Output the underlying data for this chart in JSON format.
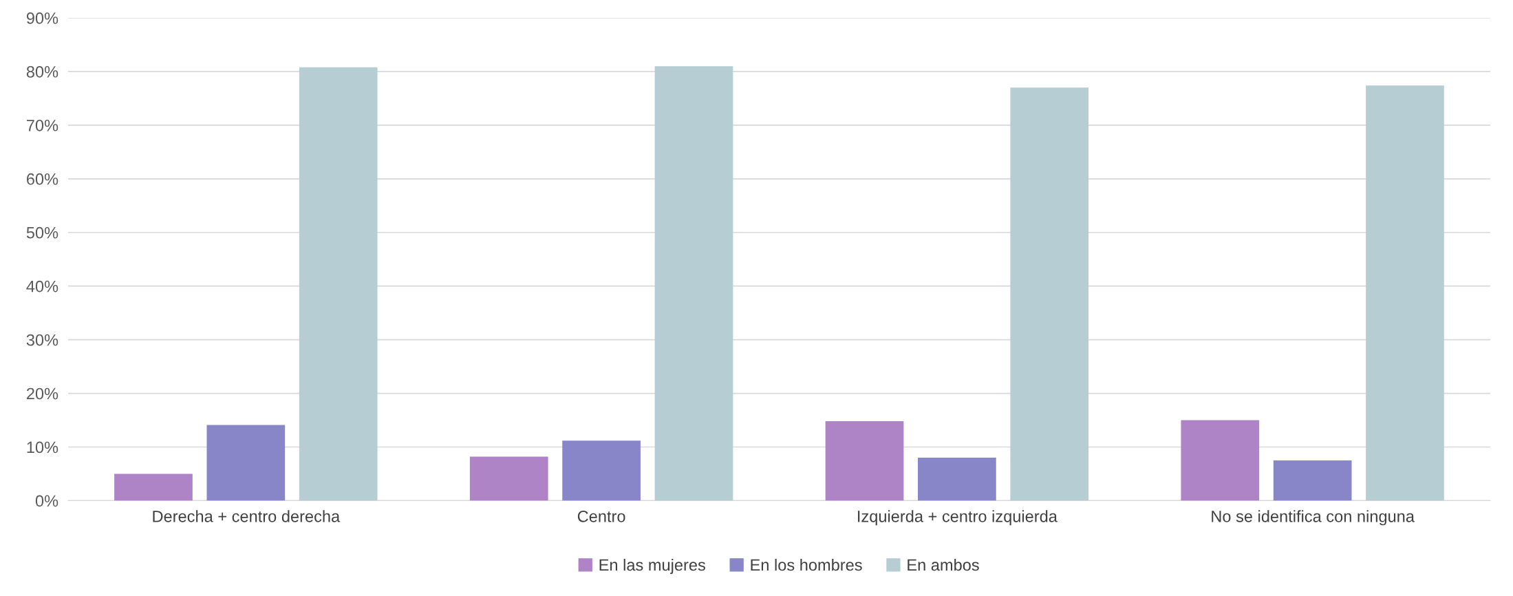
{
  "chart_data": {
    "type": "bar",
    "categories": [
      "Derecha + centro derecha",
      "Centro",
      "Izquierda + centro izquierda",
      "No se identifica con ninguna"
    ],
    "series": [
      {
        "name": "En las mujeres",
        "color": "#ae84c6",
        "values": [
          5.0,
          8.2,
          14.8,
          15.0
        ]
      },
      {
        "name": "En los hombres",
        "color": "#8886c8",
        "values": [
          14.1,
          11.2,
          8.0,
          7.5
        ]
      },
      {
        "name": "En ambos",
        "color": "#b6cdd3",
        "values": [
          80.8,
          81.0,
          77.0,
          77.4
        ]
      }
    ],
    "ylim": [
      0,
      90
    ],
    "yticks": [
      {
        "value": 0,
        "label": "0%"
      },
      {
        "value": 10,
        "label": "10%"
      },
      {
        "value": 20,
        "label": "20%"
      },
      {
        "value": 30,
        "label": "30%"
      },
      {
        "value": 40,
        "label": "40%"
      },
      {
        "value": 50,
        "label": "50%"
      },
      {
        "value": 60,
        "label": "60%"
      },
      {
        "value": 70,
        "label": "70%"
      },
      {
        "value": 80,
        "label": "80%"
      },
      {
        "value": 90,
        "label": "90%"
      }
    ],
    "grid": "y",
    "legend": "bottom"
  }
}
